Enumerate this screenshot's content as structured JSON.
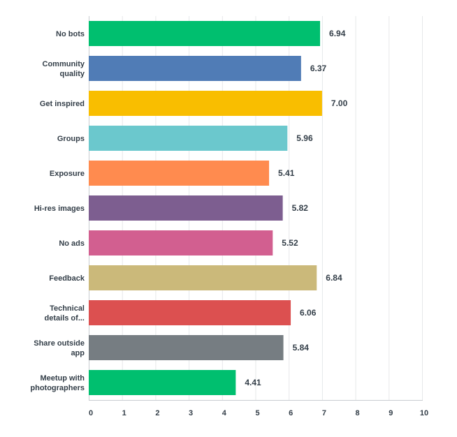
{
  "chart_data": {
    "type": "bar",
    "orientation": "horizontal",
    "title": "",
    "xlabel": "",
    "ylabel": "",
    "xlim": [
      0,
      10
    ],
    "x_ticks": [
      "0",
      "1",
      "2",
      "3",
      "4",
      "5",
      "6",
      "7",
      "8",
      "9",
      "10"
    ],
    "grid": true,
    "categories": [
      "No bots",
      "Community quality",
      "Get inspired",
      "Groups",
      "Exposure",
      "Hi-res images",
      "No ads",
      "Feedback",
      "Technical details of...",
      "Share outside app",
      "Meetup with photographers"
    ],
    "category_lines": [
      [
        "No bots"
      ],
      [
        "Community",
        "quality"
      ],
      [
        "Get inspired"
      ],
      [
        "Groups"
      ],
      [
        "Exposure"
      ],
      [
        "Hi-res images"
      ],
      [
        "No ads"
      ],
      [
        "Feedback"
      ],
      [
        "Technical",
        "details of..."
      ],
      [
        "Share outside",
        "app"
      ],
      [
        "Meetup with",
        "photographers"
      ]
    ],
    "values": [
      6.94,
      6.37,
      7.0,
      5.96,
      5.41,
      5.82,
      5.52,
      6.84,
      6.06,
      5.84,
      4.41
    ],
    "value_labels": [
      "6.94",
      "6.37",
      "7.00",
      "5.96",
      "5.41",
      "5.82",
      "5.52",
      "6.84",
      "6.06",
      "5.84",
      "4.41"
    ],
    "colors": [
      "#00bf6f",
      "#507cb6",
      "#f9be00",
      "#6bc8cd",
      "#ff8b4f",
      "#7d5e90",
      "#d25f90",
      "#cbb97a",
      "#dc5050",
      "#767d82",
      "#00bf6f"
    ],
    "grid_color": "#e6e8ea",
    "axis_color": "#c9ccd0",
    "text_color": "#333e48"
  }
}
